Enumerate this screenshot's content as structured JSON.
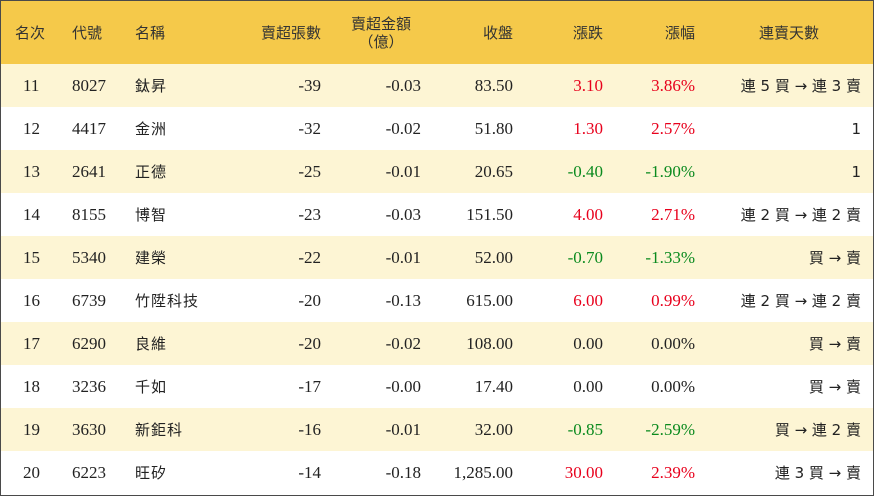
{
  "headers": {
    "rank": "名次",
    "code": "代號",
    "name": "名稱",
    "sell_lots": "賣超張數",
    "sell_amount": "賣超金額\n（億）",
    "close": "收盤",
    "change": "漲跌",
    "change_pct": "漲幅",
    "streak": "連賣天數"
  },
  "colors": {
    "header_bg": "#f5c94a",
    "odd_row_bg": "#fdf5d4",
    "up": "#e8001c",
    "down": "#0a8a1e"
  },
  "rows": [
    {
      "rank": "11",
      "code": "8027",
      "name": "鈦昇",
      "sell_lots": "-39",
      "sell_amount": "-0.03",
      "close": "83.50",
      "change": "3.10",
      "change_pct": "3.86%",
      "trend": "up",
      "streak": "連 5 買 → 連 3 賣"
    },
    {
      "rank": "12",
      "code": "4417",
      "name": "金洲",
      "sell_lots": "-32",
      "sell_amount": "-0.02",
      "close": "51.80",
      "change": "1.30",
      "change_pct": "2.57%",
      "trend": "up",
      "streak": "1"
    },
    {
      "rank": "13",
      "code": "2641",
      "name": "正德",
      "sell_lots": "-25",
      "sell_amount": "-0.01",
      "close": "20.65",
      "change": "-0.40",
      "change_pct": "-1.90%",
      "trend": "down",
      "streak": "1"
    },
    {
      "rank": "14",
      "code": "8155",
      "name": "博智",
      "sell_lots": "-23",
      "sell_amount": "-0.03",
      "close": "151.50",
      "change": "4.00",
      "change_pct": "2.71%",
      "trend": "up",
      "streak": "連 2 買 → 連 2 賣"
    },
    {
      "rank": "15",
      "code": "5340",
      "name": "建榮",
      "sell_lots": "-22",
      "sell_amount": "-0.01",
      "close": "52.00",
      "change": "-0.70",
      "change_pct": "-1.33%",
      "trend": "down",
      "streak": "買 → 賣"
    },
    {
      "rank": "16",
      "code": "6739",
      "name": "竹陞科技",
      "sell_lots": "-20",
      "sell_amount": "-0.13",
      "close": "615.00",
      "change": "6.00",
      "change_pct": "0.99%",
      "trend": "up",
      "streak": "連 2 買 → 連 2 賣"
    },
    {
      "rank": "17",
      "code": "6290",
      "name": "良維",
      "sell_lots": "-20",
      "sell_amount": "-0.02",
      "close": "108.00",
      "change": "0.00",
      "change_pct": "0.00%",
      "trend": "flat",
      "streak": "買 → 賣"
    },
    {
      "rank": "18",
      "code": "3236",
      "name": "千如",
      "sell_lots": "-17",
      "sell_amount": "-0.00",
      "close": "17.40",
      "change": "0.00",
      "change_pct": "0.00%",
      "trend": "flat",
      "streak": "買 → 賣"
    },
    {
      "rank": "19",
      "code": "3630",
      "name": "新鉅科",
      "sell_lots": "-16",
      "sell_amount": "-0.01",
      "close": "32.00",
      "change": "-0.85",
      "change_pct": "-2.59%",
      "trend": "down",
      "streak": "買 → 連 2 賣"
    },
    {
      "rank": "20",
      "code": "6223",
      "name": "旺矽",
      "sell_lots": "-14",
      "sell_amount": "-0.18",
      "close": "1,285.00",
      "change": "30.00",
      "change_pct": "2.39%",
      "trend": "up",
      "streak": "連 3 買 → 賣"
    }
  ]
}
